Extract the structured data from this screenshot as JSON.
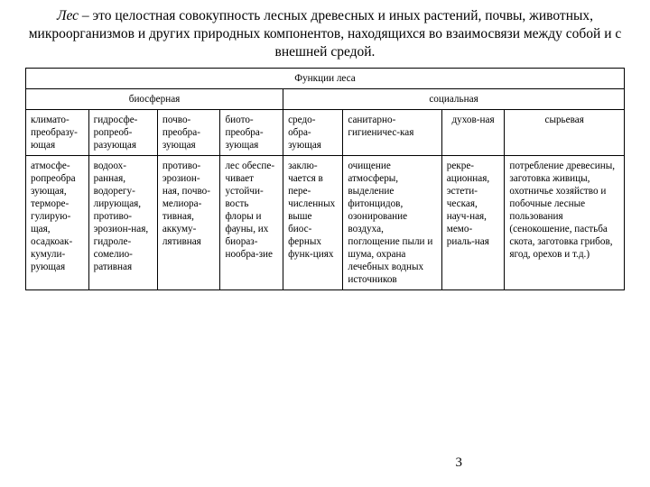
{
  "title_prefix_italic": "Лес",
  "title_rest": " – это целостная совокупность лесных древесных и иных растений, почвы, животных, микроорганизмов и других природных компонентов, находящихся во взаимосвязи между собой и с внешней средой.",
  "page_number": "3",
  "table": {
    "header_main": "Функции леса",
    "group1": "биосферная",
    "group2": "социальная",
    "cols": [
      "климато-преобразу-ющая",
      "гидросфе-ропреоб-разующая",
      "почво-преобра-зующая",
      "биото-преобра-зующая",
      "средо-обра-зующая",
      "санитарно-гигиеничес-кая",
      "духов-ная",
      "сырьевая"
    ],
    "cells": [
      "атмосфе-ропреобра зующая, терморе-гулирую-щая, осадкоак-кумули-рующая",
      "водоох-ранная, водорегу-лирующая, противо-эрозион-ная, гидроле-сомелио-ративная",
      "противо-эрозион-ная, почво-мелиора-тивная, аккуму-лятивная",
      "лес обеспе-чивает устойчи-вость флоры и фауны, их биораз-нообра-зие",
      "заклю-чается в пере-численных выше биос-ферных функ-циях",
      "очищение атмосферы, выделение фитонцидов, озонирование воздуха, поглощение пыли и шума, охрана лечебных водных источников",
      "рекре-ационная, эстети-ческая, науч-ная, мемо-риаль-ная",
      "потребление древесины, заготовка живицы, охотничье хозяйство и побочные лесные пользования (сенокошение, пастьба скота, заготовка грибов, ягод, орехов и т.д.)"
    ]
  }
}
